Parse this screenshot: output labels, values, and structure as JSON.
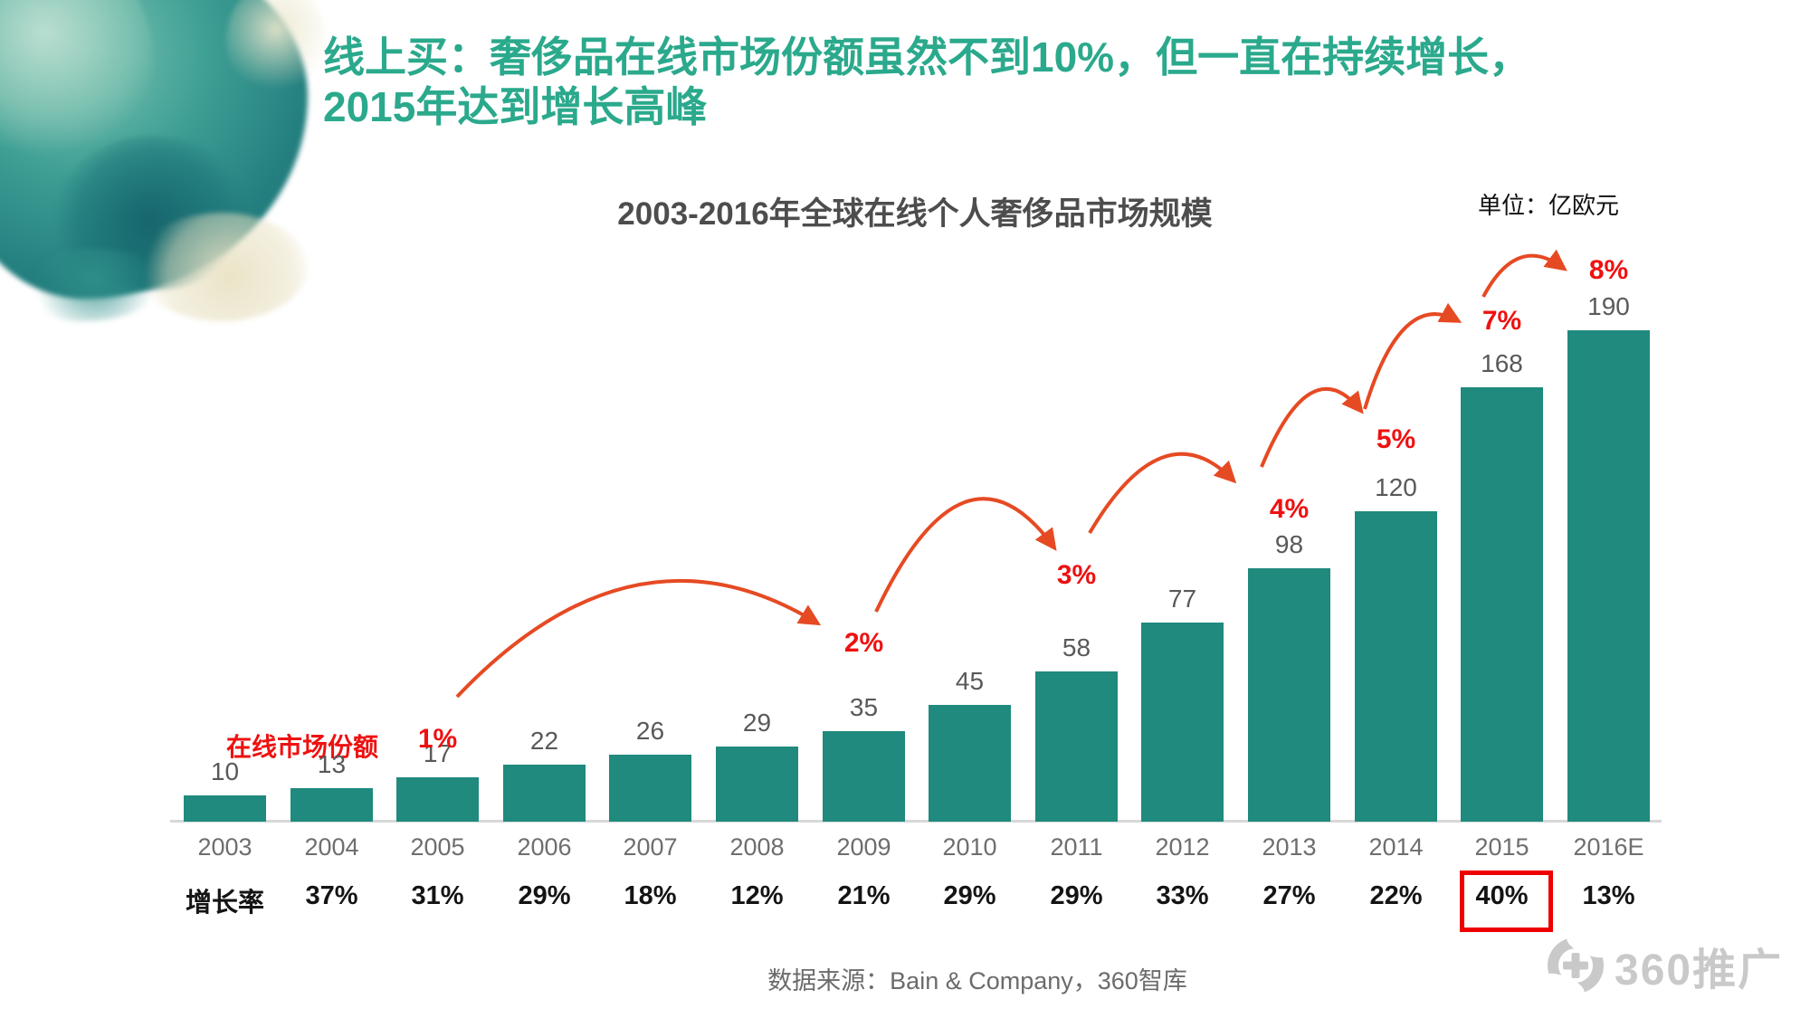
{
  "page": {
    "title_line1": "线上买：奢侈品在线市场份额虽然不到10%，但一直在持续增长，",
    "title_line2": "2015年达到增长高峰",
    "source": "数据来源：Bain & Company，360智库",
    "logo_text": "360推广"
  },
  "chart_data": {
    "type": "bar",
    "title": "2003-2016年全球在线个人奢侈品市场规模",
    "unit_label": "单位：亿欧元",
    "categories": [
      "2003",
      "2004",
      "2005",
      "2006",
      "2007",
      "2008",
      "2009",
      "2010",
      "2011",
      "2012",
      "2013",
      "2014",
      "2015",
      "2016E"
    ],
    "values": [
      10,
      13,
      17,
      22,
      26,
      29,
      35,
      45,
      58,
      77,
      98,
      120,
      168,
      190
    ],
    "growth_row_label": "增长率",
    "growth": [
      null,
      "37%",
      "31%",
      "29%",
      "18%",
      "12%",
      "21%",
      "29%",
      "29%",
      "33%",
      "27%",
      "22%",
      "40%",
      "13%"
    ],
    "growth_highlight_year": "2015",
    "online_share_caption": "在线市场份额",
    "online_share": [
      {
        "year": "2005",
        "share": "1%"
      },
      {
        "year": "2009",
        "share": "2%"
      },
      {
        "year": "2011",
        "share": "3%"
      },
      {
        "year": "2013",
        "share": "4%"
      },
      {
        "year": "2014",
        "share": "5%"
      },
      {
        "year": "2015",
        "share": "7%"
      },
      {
        "year": "2016E",
        "share": "8%"
      }
    ],
    "colors": {
      "bar": "#1f8a7d",
      "title_accent": "#2ba98c",
      "red_label": "#ee1111",
      "arrow": "#e64a23",
      "highlight_box": "#ee0000",
      "axis": "#d8d8d8"
    },
    "legend": "none",
    "grid": "off"
  }
}
